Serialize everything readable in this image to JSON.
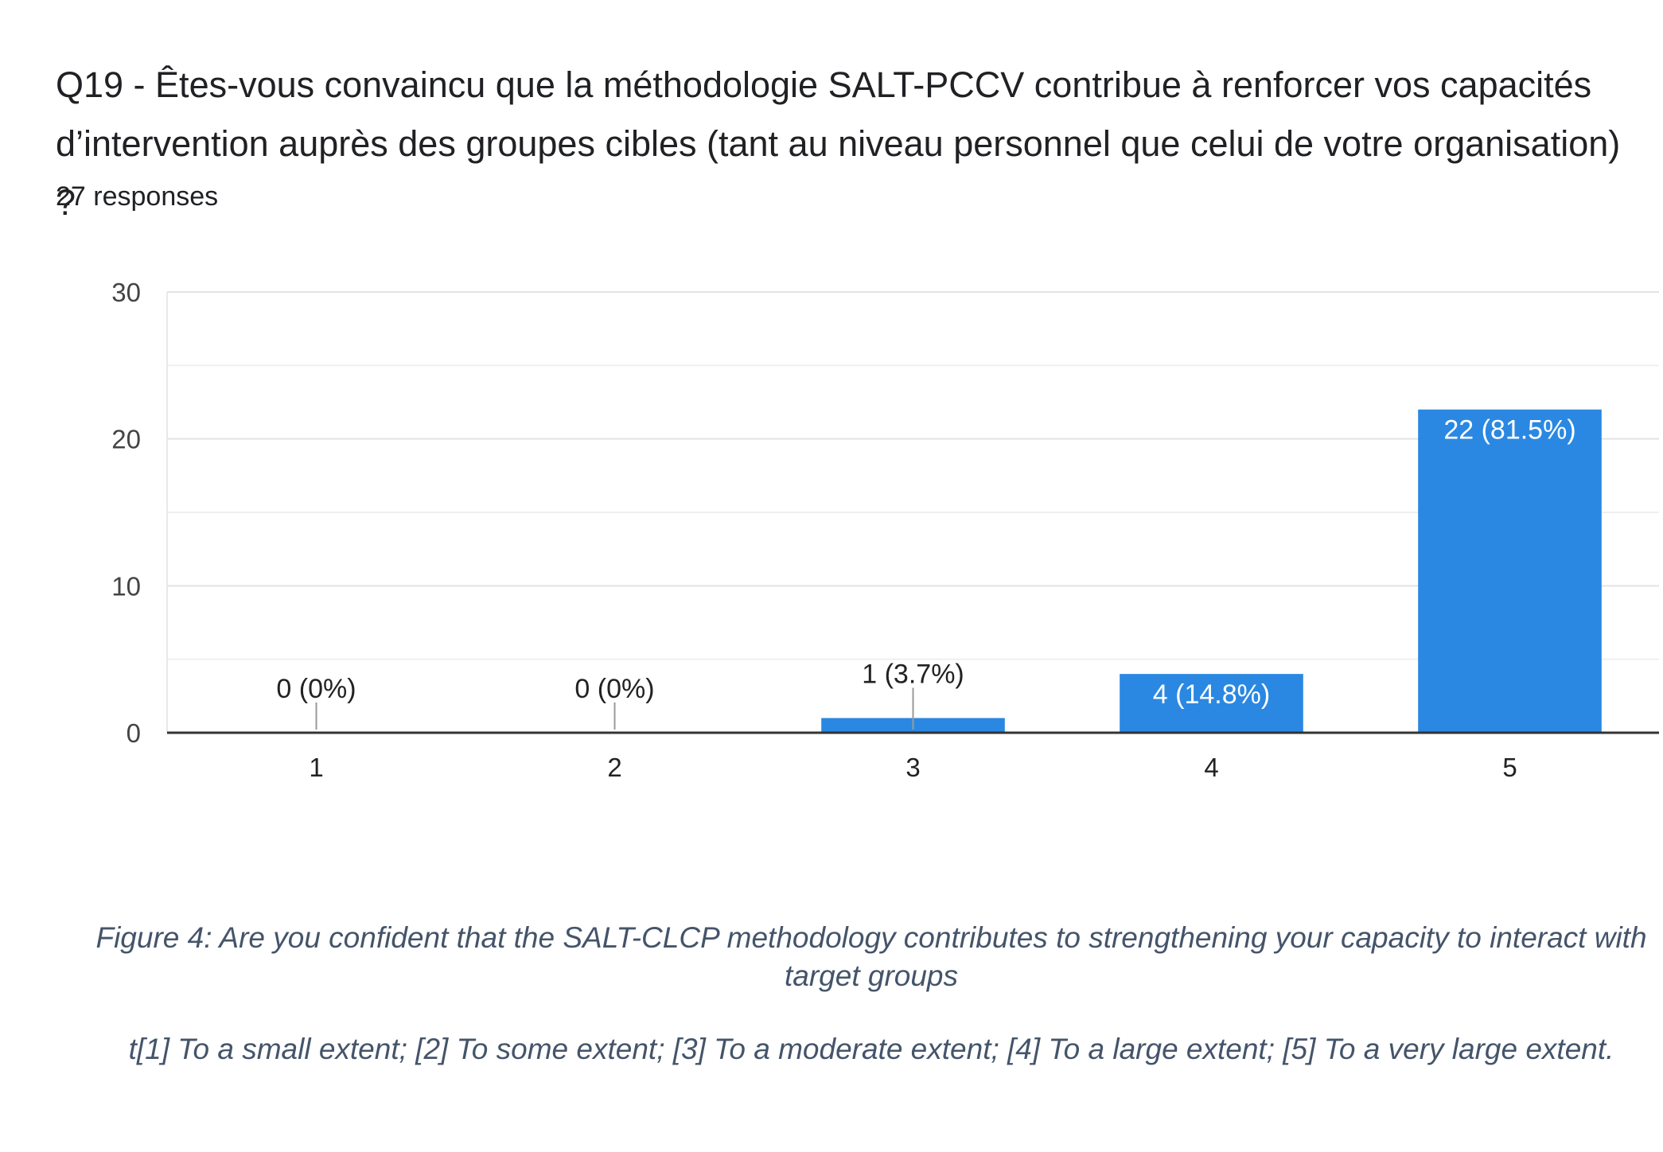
{
  "chart_data": {
    "type": "bar",
    "title": "Q19 - Êtes-vous convaincu que la méthodologie SALT-PCCV contribue à renforcer vos capacités d’intervention auprès des groupes cibles (tant au niveau personnel que celui de votre organisation) ?",
    "subtitle": "27 responses",
    "categories": [
      "1",
      "2",
      "3",
      "4",
      "5"
    ],
    "values": [
      0,
      0,
      1,
      4,
      22
    ],
    "data_labels": [
      "0 (0%)",
      "0 (0%)",
      "1 (3.7%)",
      "4 (14.8%)",
      "22 (81.5%)"
    ],
    "ylim": [
      0,
      30
    ],
    "yticks": [
      "0",
      "10",
      "20",
      "30"
    ],
    "xlabel": "",
    "ylabel": "",
    "grid": true,
    "bar_color": "#2a88e2"
  },
  "caption": {
    "figure": "Figure 4: Are you confident that the SALT-CLCP methodology contributes to strengthening your capacity to interact with target groups",
    "scale": "t[1] To a small extent; [2] To some extent; [3] To a moderate extent; [4] To a large extent; [5] To a very large extent."
  }
}
